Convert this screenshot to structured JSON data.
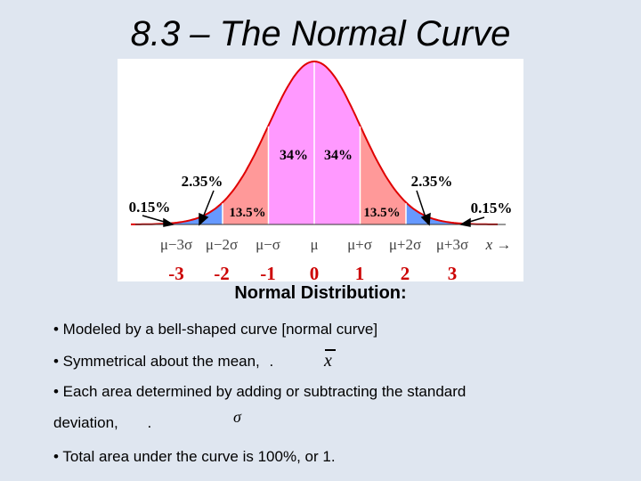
{
  "title": "8.3 – The Normal Curve",
  "figure": {
    "center_labels": [
      "34%",
      "34%"
    ],
    "mid_labels": [
      "13.5%",
      "13.5%"
    ],
    "callout_235": [
      "2.35%",
      "2.35%"
    ],
    "callout_015": [
      "0.15%",
      "0.15%"
    ],
    "mu_labels": [
      "μ−3σ",
      "μ−2σ",
      "μ−σ",
      "μ",
      "μ+σ",
      "μ+2σ",
      "μ+3σ"
    ],
    "x_label": "x →",
    "z_labels": [
      "-3",
      "-2",
      "-1",
      "0",
      "1",
      "2",
      "3"
    ],
    "colors": {
      "center": "#ff99ff",
      "mid": "#ff9999",
      "tail": "#6699ff",
      "outline": "#e00000",
      "z_text": "#cc0000"
    }
  },
  "subtitle": "Normal Distribution:",
  "bullets": {
    "b1": "• Modeled by a bell-shaped curve [normal curve]",
    "b2": "• Symmetrical about the mean,",
    "b2_end": ".",
    "xbar_symbol": "x",
    "b3": "• Each area determined by adding or subtracting the standard",
    "b3_cont": "deviation,",
    "b3_end": ".",
    "sigma_symbol": "σ",
    "b4": "• Total area under the curve is 100%, or 1."
  }
}
